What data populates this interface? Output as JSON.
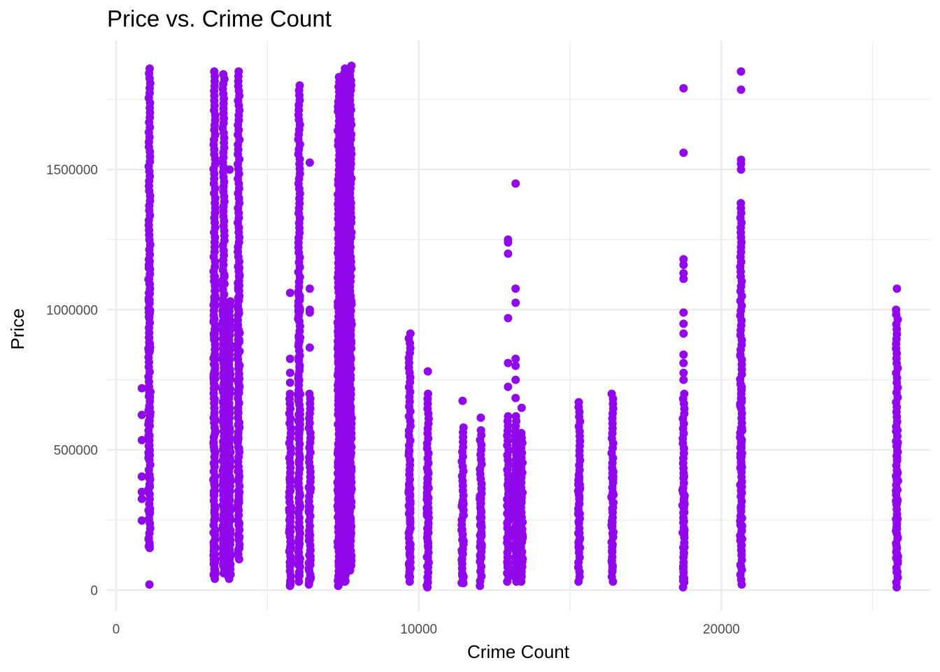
{
  "chart_data": {
    "type": "scatter",
    "title": "Price vs. Crime Count",
    "xlabel": "Crime Count",
    "ylabel": "Price",
    "xlim": [
      -300,
      26900
    ],
    "ylim": [
      -75000,
      1960000
    ],
    "x_ticks": [
      0,
      10000,
      20000
    ],
    "x_tick_labels": [
      "0",
      "10000",
      "20000"
    ],
    "x_minor_ticks": [
      5000,
      15000,
      25000
    ],
    "y_ticks": [
      0,
      500000,
      1000000,
      1500000
    ],
    "y_tick_labels": [
      "0",
      "500000",
      "1000000",
      "1500000"
    ],
    "y_minor_ticks": [
      250000,
      750000,
      1250000,
      1750000
    ],
    "grid": true,
    "point_color": "#9108EB",
    "columns": [
      {
        "x": 1100,
        "dense": [
          [
            150000,
            1860000
          ]
        ],
        "extra": [
          20000
        ]
      },
      {
        "x": 850,
        "dense": [],
        "extra": [
          720000,
          625000,
          535000,
          405000,
          350000,
          325000,
          248000
        ]
      },
      {
        "x": 3250,
        "dense": [
          [
            40000,
            1850000
          ]
        ],
        "extra": []
      },
      {
        "x": 3550,
        "dense": [
          [
            60000,
            1840000
          ]
        ],
        "extra": []
      },
      {
        "x": 3750,
        "dense": [
          [
            40000,
            1030000
          ]
        ],
        "extra": [
          1500000
        ]
      },
      {
        "x": 4050,
        "dense": [
          [
            110000,
            1850000
          ]
        ],
        "extra": []
      },
      {
        "x": 5750,
        "dense": [
          [
            15000,
            700000
          ]
        ],
        "extra": [
          1060000,
          825000,
          775000,
          740000
        ]
      },
      {
        "x": 6050,
        "dense": [
          [
            30000,
            1800000
          ]
        ],
        "extra": []
      },
      {
        "x": 6400,
        "dense": [
          [
            20000,
            700000
          ]
        ],
        "extra": [
          1525000,
          1075000,
          1000000,
          990000,
          865000
        ]
      },
      {
        "x": 7350,
        "dense": [
          [
            15000,
            1830000
          ]
        ],
        "extra": []
      },
      {
        "x": 7550,
        "dense": [
          [
            30000,
            1860000
          ]
        ],
        "extra": []
      },
      {
        "x": 7750,
        "dense": [
          [
            70000,
            1870000
          ]
        ],
        "extra": []
      },
      {
        "x": 9700,
        "dense": [
          [
            30000,
            915000
          ]
        ],
        "extra": []
      },
      {
        "x": 10300,
        "dense": [
          [
            10000,
            700000
          ]
        ],
        "extra": [
          780000
        ]
      },
      {
        "x": 11450,
        "dense": [
          [
            25000,
            580000
          ]
        ],
        "extra": [
          675000
        ]
      },
      {
        "x": 12050,
        "dense": [
          [
            15000,
            570000
          ]
        ],
        "extra": [
          615000
        ]
      },
      {
        "x": 12950,
        "dense": [
          [
            30000,
            620000
          ]
        ],
        "extra": [
          1250000,
          1240000,
          1200000,
          970000,
          810000,
          725000
        ]
      },
      {
        "x": 13200,
        "dense": [
          [
            30000,
            620000
          ]
        ],
        "extra": [
          1450000,
          1075000,
          1025000,
          825000,
          800000,
          750000,
          685000
        ]
      },
      {
        "x": 13400,
        "dense": [
          [
            30000,
            560000
          ]
        ],
        "extra": [
          650000
        ]
      },
      {
        "x": 15300,
        "dense": [
          [
            30000,
            670000
          ]
        ],
        "extra": []
      },
      {
        "x": 16400,
        "dense": [
          [
            30000,
            700000
          ]
        ],
        "extra": []
      },
      {
        "x": 18750,
        "dense": [
          [
            10000,
            700000
          ]
        ],
        "extra": [
          1790000,
          1560000,
          1180000,
          1160000,
          1130000,
          1110000,
          990000,
          950000,
          915000,
          840000,
          810000,
          775000,
          750000
        ]
      },
      {
        "x": 20650,
        "dense": [
          [
            20000,
            1380000
          ]
        ],
        "extra": [
          1850000,
          1785000,
          1535000,
          1520000,
          1500000
        ]
      },
      {
        "x": 25800,
        "dense": [
          [
            10000,
            1000000
          ]
        ],
        "extra": [
          1075000
        ]
      }
    ]
  }
}
